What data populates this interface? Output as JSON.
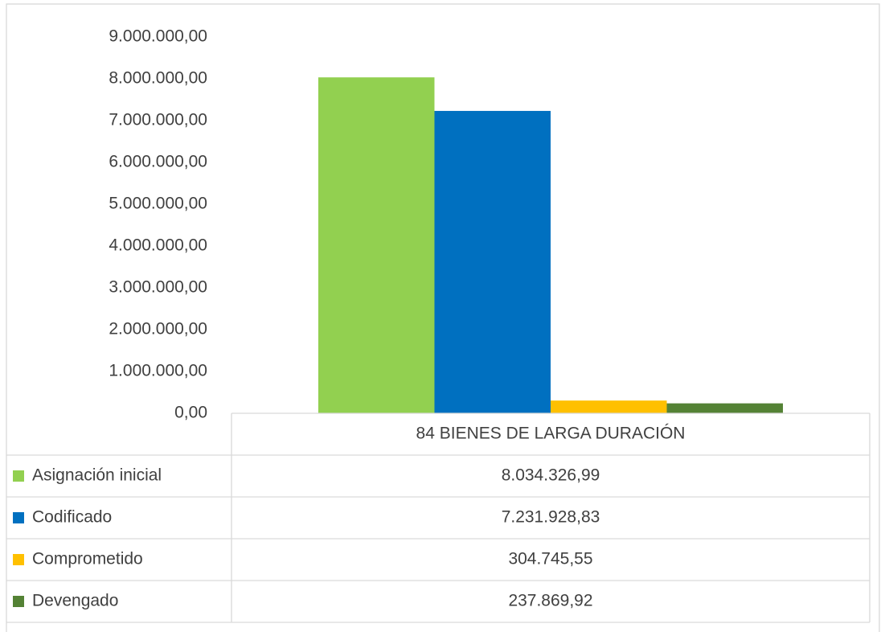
{
  "chart_data": {
    "type": "bar",
    "categories": [
      "84 BIENES DE LARGA DURACIÓN"
    ],
    "series": [
      {
        "name": "Asignación inicial",
        "color": "#92d050",
        "values": [
          8034326.99
        ],
        "value_labels": [
          "8.034.326,99"
        ]
      },
      {
        "name": "Codificado",
        "color": "#0070c0",
        "values": [
          7231928.83
        ],
        "value_labels": [
          "7.231.928,83"
        ]
      },
      {
        "name": "Comprometido",
        "color": "#ffc000",
        "values": [
          304745.55
        ],
        "value_labels": [
          "304.745,55"
        ]
      },
      {
        "name": "Devengado",
        "color": "#548235",
        "values": [
          237869.92
        ],
        "value_labels": [
          "237.869,92"
        ]
      }
    ],
    "ylim": [
      0,
      9000000
    ],
    "yticks": [
      {
        "value": 0,
        "label": "0,00"
      },
      {
        "value": 1000000,
        "label": "1.000.000,00"
      },
      {
        "value": 2000000,
        "label": "2.000.000,00"
      },
      {
        "value": 3000000,
        "label": "3.000.000,00"
      },
      {
        "value": 4000000,
        "label": "4.000.000,00"
      },
      {
        "value": 5000000,
        "label": "5.000.000,00"
      },
      {
        "value": 6000000,
        "label": "6.000.000,00"
      },
      {
        "value": 7000000,
        "label": "7.000.000,00"
      },
      {
        "value": 8000000,
        "label": "8.000.000,00"
      },
      {
        "value": 9000000,
        "label": "9.000.000,00"
      }
    ],
    "grid": false,
    "legend": "table"
  }
}
